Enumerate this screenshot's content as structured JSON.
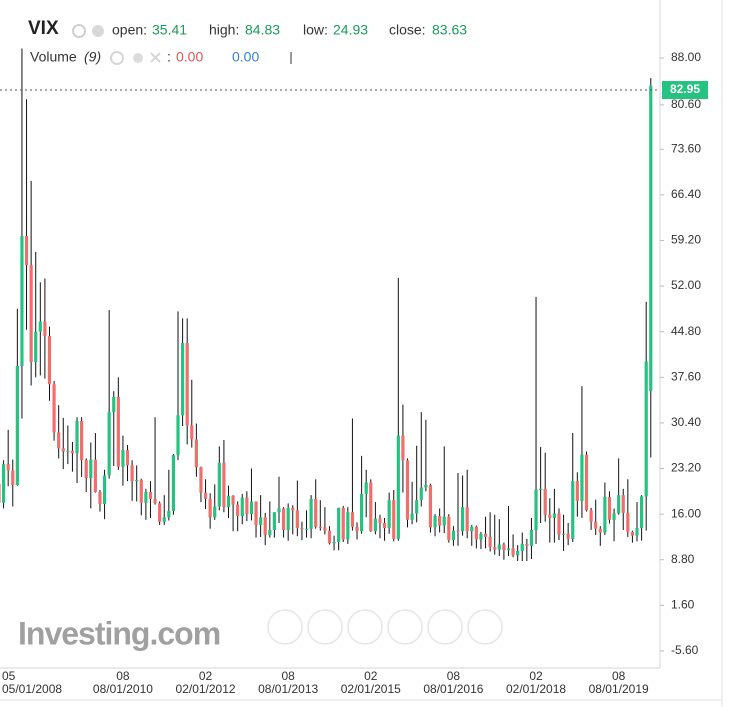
{
  "chart_data": {
    "type": "candlestick",
    "title": "VIX",
    "legend_labels": {
      "open": "open:",
      "high": "high:",
      "low": "low:",
      "close": "close:"
    },
    "indicator": {
      "name": "Volume",
      "period": "(9)",
      "separator": ":",
      "values": [
        "0.00",
        "0.00"
      ]
    },
    "last_price": 82.95,
    "watermark": "Investing.com",
    "up_color": "#26c281",
    "down_color": "#ef6f6c",
    "ylim": [
      -8.29,
      97.16
    ],
    "yticks": [
      {
        "value": 88,
        "label": "88.00"
      },
      {
        "value": 80.6,
        "label": "80.60"
      },
      {
        "value": 73.6,
        "label": "73.60"
      },
      {
        "value": 66.4,
        "label": "66.40"
      },
      {
        "value": 59.2,
        "label": "59.20"
      },
      {
        "value": 52,
        "label": "52.00"
      },
      {
        "value": 44.8,
        "label": "44.80"
      },
      {
        "value": 37.6,
        "label": "37.60"
      },
      {
        "value": 30.4,
        "label": "30.40"
      },
      {
        "value": 23.2,
        "label": "23.20"
      },
      {
        "value": 16,
        "label": "16.00"
      },
      {
        "value": 8.8,
        "label": "8.80"
      },
      {
        "value": 1.6,
        "label": "1.60"
      },
      {
        "value": -5.6,
        "label": "-5.60"
      }
    ],
    "categories": [
      "05/01/2008",
      null,
      null,
      null,
      null,
      null,
      null,
      null,
      null,
      null,
      null,
      null,
      null,
      null,
      null,
      null,
      null,
      null,
      null,
      null,
      null,
      null,
      null,
      null,
      null,
      null,
      null,
      "08/01/2010",
      null,
      null,
      null,
      null,
      null,
      null,
      null,
      null,
      null,
      null,
      null,
      null,
      null,
      null,
      null,
      null,
      null,
      "02/01/2012",
      null,
      null,
      null,
      null,
      null,
      null,
      null,
      null,
      null,
      null,
      null,
      null,
      null,
      null,
      null,
      null,
      null,
      "08/01/2013",
      null,
      null,
      null,
      null,
      null,
      null,
      null,
      null,
      null,
      null,
      null,
      null,
      null,
      null,
      null,
      null,
      null,
      "02/01/2015",
      null,
      null,
      null,
      null,
      null,
      null,
      null,
      null,
      null,
      null,
      null,
      null,
      null,
      null,
      null,
      null,
      null,
      "08/01/2016",
      null,
      null,
      null,
      null,
      null,
      null,
      null,
      null,
      null,
      null,
      null,
      null,
      null,
      null,
      null,
      null,
      null,
      "02/01/2018",
      null,
      null,
      null,
      null,
      null,
      null,
      null,
      null,
      null,
      null,
      null,
      null,
      null,
      null,
      null,
      null,
      null,
      "08/01/2019",
      null,
      null,
      null,
      null,
      null,
      null,
      null
    ],
    "category_months": [
      "05",
      null,
      null,
      null,
      null,
      null,
      null,
      null,
      null,
      null,
      null,
      null,
      null,
      null,
      null,
      null,
      null,
      null,
      null,
      null,
      null,
      null,
      null,
      null,
      null,
      null,
      null,
      "08",
      null,
      null,
      null,
      null,
      null,
      null,
      null,
      null,
      null,
      null,
      null,
      null,
      null,
      null,
      null,
      null,
      null,
      "02",
      null,
      null,
      null,
      null,
      null,
      null,
      null,
      null,
      null,
      null,
      null,
      null,
      null,
      null,
      null,
      null,
      null,
      "08",
      null,
      null,
      null,
      null,
      null,
      null,
      null,
      null,
      null,
      null,
      null,
      null,
      null,
      null,
      null,
      null,
      null,
      "02",
      null,
      null,
      null,
      null,
      null,
      null,
      null,
      null,
      null,
      null,
      null,
      null,
      null,
      null,
      null,
      null,
      null,
      "08",
      null,
      null,
      null,
      null,
      null,
      null,
      null,
      null,
      null,
      null,
      null,
      null,
      null,
      null,
      null,
      null,
      null,
      "02",
      null,
      null,
      null,
      null,
      null,
      null,
      null,
      null,
      null,
      null,
      null,
      null,
      null,
      null,
      null,
      null,
      null,
      "08",
      null,
      null,
      null,
      null,
      null,
      null,
      null
    ],
    "open": [
      20.8,
      17.8,
      23.9,
      22.9,
      20.6,
      39.4,
      59.9,
      55.3,
      40.0,
      44.8,
      46.4,
      44.1,
      36.5,
      28.9,
      26.4,
      25.9,
      26.0,
      25.6,
      30.7,
      24.5,
      21.7,
      24.6,
      19.5,
      17.6,
      22.1,
      32.1,
      34.5,
      23.5,
      26.1,
      23.7,
      21.2,
      21.4,
      17.8,
      19.5,
      18.4,
      17.7,
      14.8,
      15.5,
      16.5,
      25.3,
      31.6,
      43.0,
      30.0,
      27.8,
      23.4,
      19.4,
      18.4,
      15.5,
      17.2,
      24.1,
      17.1,
      18.9,
      17.5,
      15.7,
      18.6,
      16.0,
      18.0,
      14.3,
      15.5,
      12.7,
      13.5,
      16.3,
      16.9,
      13.5,
      17.0,
      16.6,
      13.8,
      13.7,
      13.7,
      18.4,
      14.0,
      13.9,
      13.4,
      11.4,
      11.6,
      17.0,
      12.0,
      16.3,
      14.0,
      13.3,
      19.2,
      21.0,
      13.3,
      15.3,
      14.6,
      13.8,
      18.2,
      12.1,
      28.4,
      24.5,
      15.1,
      16.1,
      18.2,
      20.2,
      20.6,
      13.9,
      15.7,
      14.2,
      15.6,
      11.9,
      13.4,
      13.3,
      17.1,
      13.3,
      14.0,
      12.0,
      12.9,
      12.4,
      10.8,
      10.4,
      11.2,
      10.3,
      10.6,
      9.5,
      10.2,
      11.3,
      11.0,
      13.5,
      19.9,
      20.0,
      15.9,
      15.4,
      16.1,
      12.8,
      12.9,
      12.1,
      21.2,
      18.1,
      25.4,
      16.6,
      14.8,
      13.7,
      13.1,
      18.7,
      15.1,
      16.1,
      19.0,
      16.2,
      13.2,
      12.6,
      13.8,
      18.8,
      35.41
    ],
    "high": [
      20.9,
      24.5,
      29.3,
      24.6,
      48.4,
      89.5,
      81.5,
      68.6,
      57.4,
      52.6,
      53.2,
      45.6,
      37.0,
      33.2,
      31.2,
      30.0,
      27.4,
      31.3,
      31.3,
      24.8,
      27.3,
      28.8,
      19.8,
      23.0,
      48.2,
      35.4,
      37.6,
      28.4,
      26.9,
      24.5,
      23.7,
      21.6,
      20.0,
      21.2,
      31.3,
      18.0,
      19.0,
      23.0,
      25.5,
      48.0,
      46.9,
      46.9,
      37.2,
      30.3,
      23.5,
      21.5,
      19.3,
      20.7,
      26.7,
      27.7,
      20.5,
      19.0,
      18.0,
      19.2,
      19.6,
      23.2,
      18.0,
      19.0,
      16.2,
      18.0,
      16.3,
      21.9,
      17.1,
      17.7,
      17.4,
      21.3,
      14.8,
      16.6,
      19.0,
      21.5,
      18.2,
      17.1,
      14.1,
      12.6,
      17.0,
      17.3,
      17.1,
      31.1,
      14.7,
      25.2,
      23.0,
      21.5,
      17.9,
      15.9,
      15.4,
      19.4,
      19.8,
      53.3,
      33.3,
      24.8,
      21.1,
      26.8,
      32.1,
      30.9,
      20.8,
      16.0,
      16.9,
      26.7,
      16.0,
      14.1,
      22.5,
      22.1,
      23.0,
      14.3,
      14.2,
      13.2,
      15.6,
      16.3,
      15.9,
      15.2,
      11.5,
      17.3,
      12.8,
      11.1,
      13.1,
      12.1,
      15.4,
      50.3,
      26.6,
      25.7,
      18.5,
      20.0,
      16.9,
      15.9,
      14.6,
      28.8,
      22.6,
      36.2,
      25.9,
      17.0,
      18.3,
      14.1,
      21.0,
      19.6,
      16.9,
      24.8,
      20.0,
      21.5,
      13.4,
      17.9,
      19.0,
      49.5,
      84.83
    ],
    "low": [
      15.8,
      16.9,
      20.4,
      17.2,
      20.5,
      31.1,
      45.1,
      36.3,
      37.6,
      37.9,
      37.4,
      33.9,
      27.6,
      24.8,
      23.1,
      23.9,
      22.7,
      20.9,
      21.9,
      19.5,
      16.9,
      19.4,
      16.4,
      15.2,
      21.6,
      23.6,
      23.0,
      20.5,
      21.2,
      18.1,
      18.0,
      15.8,
      15.1,
      15.4,
      17.5,
      14.3,
      14.3,
      15.0,
      15.9,
      24.5,
      29.9,
      27.0,
      26.5,
      21.9,
      17.9,
      16.8,
      13.7,
      15.1,
      16.6,
      16.3,
      15.4,
      13.3,
      13.3,
      14.4,
      14.9,
      15.0,
      12.3,
      12.4,
      11.1,
      12.3,
      12.3,
      14.6,
      12.3,
      11.8,
      12.8,
      12.5,
      11.9,
      12.3,
      12.2,
      13.7,
      13.4,
      12.8,
      11.2,
      10.3,
      10.3,
      11.6,
      11.3,
      13.4,
      12.0,
      12.9,
      15.5,
      13.2,
      12.8,
      12.2,
      11.8,
      12.9,
      11.7,
      11.8,
      19.4,
      13.9,
      14.4,
      14.7,
      17.2,
      19.6,
      13.1,
      12.5,
      13.1,
      13.0,
      11.5,
      11.0,
      11.0,
      12.6,
      12.2,
      11.0,
      10.6,
      10.5,
      10.6,
      10.1,
      9.6,
      9.4,
      8.8,
      9.4,
      9.2,
      8.6,
      8.6,
      8.6,
      8.9,
      11.3,
      14.6,
      14.8,
      11.5,
      11.5,
      11.9,
      10.2,
      11.1,
      11.6,
      15.6,
      15.4,
      16.4,
      13.5,
      12.7,
      11.0,
      12.7,
      14.5,
      11.7,
      15.9,
      13.5,
      12.4,
      11.5,
      11.7,
      11.8,
      13.4,
      24.93
    ],
    "close": [
      17.8,
      23.9,
      22.9,
      20.6,
      39.4,
      59.9,
      55.3,
      40.0,
      44.8,
      46.4,
      44.1,
      36.5,
      28.9,
      26.4,
      25.9,
      26.0,
      25.6,
      30.7,
      24.5,
      21.7,
      24.6,
      19.5,
      17.6,
      22.1,
      32.1,
      34.5,
      23.5,
      26.1,
      23.7,
      21.2,
      21.4,
      17.8,
      19.5,
      18.4,
      17.7,
      14.8,
      15.5,
      16.5,
      25.3,
      31.6,
      43.0,
      30.0,
      27.8,
      23.4,
      19.4,
      18.4,
      15.5,
      17.2,
      24.1,
      17.1,
      18.9,
      17.5,
      15.7,
      18.6,
      16.0,
      18.0,
      14.3,
      15.5,
      12.7,
      13.5,
      16.3,
      16.9,
      13.5,
      17.0,
      16.6,
      13.8,
      13.7,
      13.7,
      18.4,
      14.0,
      13.9,
      13.4,
      11.4,
      11.6,
      17.0,
      12.0,
      16.3,
      14.0,
      13.3,
      19.2,
      21.0,
      13.3,
      15.3,
      14.6,
      13.8,
      18.2,
      12.1,
      28.4,
      24.5,
      15.1,
      16.1,
      18.2,
      20.2,
      20.6,
      13.9,
      15.7,
      14.2,
      15.6,
      11.9,
      13.4,
      13.3,
      17.1,
      13.3,
      14.0,
      12.0,
      12.9,
      12.4,
      10.8,
      10.4,
      11.2,
      10.3,
      10.6,
      9.5,
      10.2,
      11.3,
      11.0,
      13.5,
      19.9,
      20.0,
      15.9,
      15.4,
      16.1,
      12.8,
      12.9,
      12.1,
      21.2,
      18.1,
      25.4,
      16.6,
      14.8,
      13.7,
      13.1,
      18.7,
      15.1,
      16.1,
      19.0,
      16.2,
      13.2,
      12.6,
      13.8,
      18.8,
      40.1,
      83.63
    ]
  }
}
